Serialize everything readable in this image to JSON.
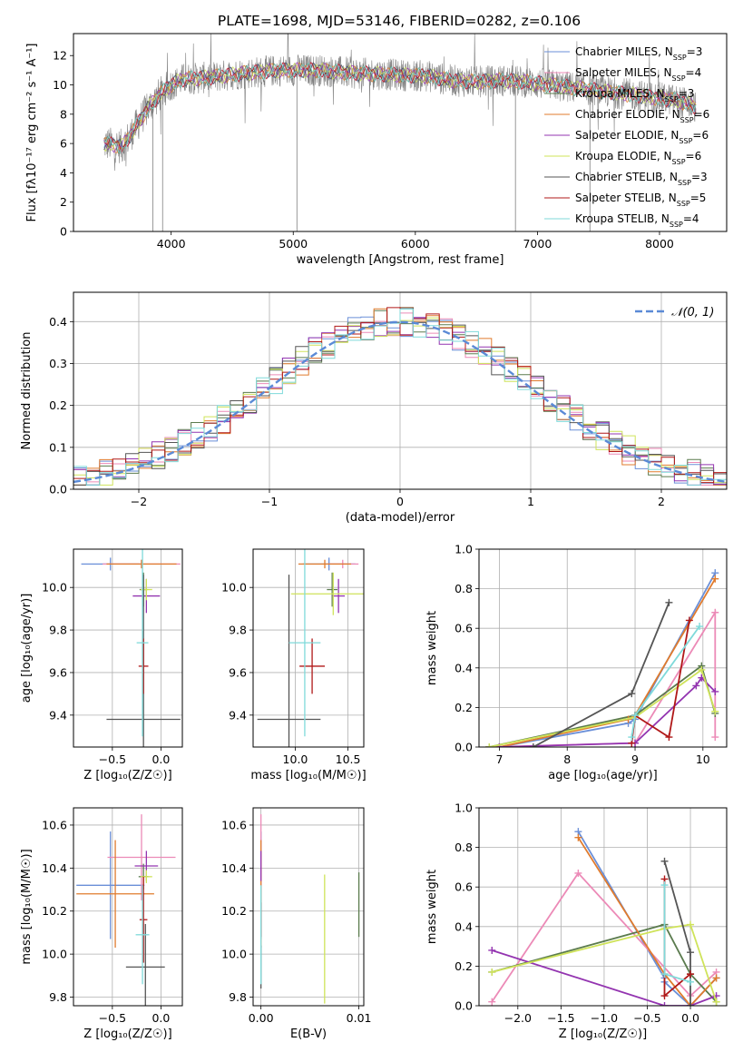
{
  "figure": {
    "title": "PLATE=1698, MJD=53146, FIBERID=0282, z=0.106"
  },
  "colors": {
    "Chabrier MILES": "#6a8fd8",
    "Salpeter MILES": "#ec8ab7",
    "Kroupa MILES": "#5b7b4e",
    "Chabrier ELODIE": "#e07b2d",
    "Salpeter ELODIE": "#9334b0",
    "Kroupa ELODIE": "#cfe35a",
    "Chabrier STELIB": "#555555",
    "Salpeter STELIB": "#b01818",
    "Kroupa STELIB": "#7fdada",
    "spectrum_data": "#808080",
    "normal_curve": "#5b8ad6"
  },
  "legend_spectrum": [
    {
      "name": "Chabrier MILES",
      "nssp": "3"
    },
    {
      "name": "Salpeter MILES",
      "nssp": "4"
    },
    {
      "name": "Kroupa MILES",
      "nssp": "3"
    },
    {
      "name": "Chabrier ELODIE",
      "nssp": "6"
    },
    {
      "name": "Salpeter ELODIE",
      "nssp": "6"
    },
    {
      "name": "Kroupa ELODIE",
      "nssp": "6"
    },
    {
      "name": "Chabrier STELIB",
      "nssp": "3"
    },
    {
      "name": "Salpeter STELIB",
      "nssp": "5"
    },
    {
      "name": "Kroupa STELIB",
      "nssp": "4"
    }
  ],
  "chart_data": [
    {
      "id": "spectrum",
      "type": "line",
      "xlabel": "wavelength [Angstrom, rest frame]",
      "ylabel": "Flux [fλ10⁻¹⁷ erg cm⁻² s⁻¹ A⁻¹]",
      "xlim": [
        3200,
        8550
      ],
      "ylim": [
        0,
        13.5
      ],
      "xticks": [
        4000,
        5000,
        6000,
        7000,
        8000
      ],
      "yticks": [
        0,
        2,
        4,
        6,
        8,
        10,
        12
      ],
      "grid": false,
      "legend_position": "top-right",
      "continuum": {
        "x": [
          3450,
          3600,
          3700,
          3800,
          3900,
          4000,
          4100,
          4300,
          4600,
          4900,
          5200,
          5500,
          5800,
          6100,
          6300,
          6500,
          6700,
          6900,
          7100,
          7300,
          7500,
          7700,
          7900,
          8100,
          8200,
          8300
        ],
        "y": [
          6.0,
          5.8,
          7.0,
          8.3,
          9.3,
          10.0,
          10.4,
          10.5,
          10.8,
          11.0,
          11.0,
          10.8,
          10.7,
          10.6,
          10.3,
          10.2,
          10.3,
          10.2,
          10.0,
          9.8,
          9.6,
          9.4,
          9.2,
          9.0,
          8.8,
          8.5
        ]
      }
    },
    {
      "id": "residuals",
      "type": "histogram",
      "xlabel": "(data-model)/error",
      "ylabel": "Normed distribution",
      "xlim": [
        -2.5,
        2.5
      ],
      "ylim": [
        0,
        0.47
      ],
      "xticks": [
        -2,
        -1,
        0,
        1,
        2
      ],
      "yticks": [
        0.0,
        0.1,
        0.2,
        0.3,
        0.4
      ],
      "grid": true,
      "legend": "𝒩(0, 1)",
      "legend_position": "top-right",
      "bin_width": 0.1,
      "bin_start": -2.5
    },
    {
      "id": "age_vs_Z",
      "type": "scatter",
      "xlabel": "Z [log₁₀(Z/Z☉)]",
      "ylabel": "age  [log₁₀(age/yr)]",
      "xlim": [
        -0.9,
        0.22
      ],
      "ylim": [
        9.25,
        10.18
      ],
      "xticks": [
        -0.5,
        0.0
      ],
      "yticks": [
        9.4,
        9.6,
        9.8,
        10.0
      ],
      "grid": true,
      "points": [
        {
          "series": "Chabrier MILES",
          "x": -0.52,
          "y": 10.11,
          "xerr": 0.3,
          "yerr": 0.03
        },
        {
          "series": "Salpeter MILES",
          "x": -0.2,
          "y": 10.11,
          "xerr": 0.4,
          "yerr": 0.02
        },
        {
          "series": "Kroupa MILES",
          "x": -0.18,
          "y": 9.99,
          "xerr": 0.04,
          "yerr": 0.08
        },
        {
          "series": "Chabrier ELODIE",
          "x": -0.2,
          "y": 10.11,
          "xerr": 0.36,
          "yerr": 0.02
        },
        {
          "series": "Salpeter ELODIE",
          "x": -0.15,
          "y": 9.96,
          "xerr": 0.14,
          "yerr": 0.08
        },
        {
          "series": "Kroupa ELODIE",
          "x": -0.15,
          "y": 9.99,
          "xerr": 0.06,
          "yerr": 0.05
        },
        {
          "series": "Chabrier STELIB",
          "x": -0.18,
          "y": 9.38,
          "xerr": 0.38,
          "yerr": 0.68
        },
        {
          "series": "Salpeter STELIB",
          "x": -0.18,
          "y": 9.63,
          "xerr": 0.05,
          "yerr": 0.13
        },
        {
          "series": "Kroupa STELIB",
          "x": -0.19,
          "y": 9.74,
          "xerr": 0.06,
          "yerr": 0.44
        }
      ]
    },
    {
      "id": "age_vs_mass",
      "type": "scatter",
      "xlabel": "mass [log₁₀(M/M☉)]",
      "ylabel": "",
      "xlim": [
        9.6,
        10.65
      ],
      "ylim": [
        9.25,
        10.18
      ],
      "xticks": [
        10.0,
        10.5
      ],
      "yticks": [
        9.4,
        9.6,
        9.8,
        10.0
      ],
      "grid": true,
      "points": [
        {
          "series": "Chabrier MILES",
          "x": 10.32,
          "y": 10.11,
          "xerr": 0.25,
          "yerr": 0.03
        },
        {
          "series": "Salpeter MILES",
          "x": 10.45,
          "y": 10.11,
          "xerr": 0.15,
          "yerr": 0.02
        },
        {
          "series": "Kroupa MILES",
          "x": 10.35,
          "y": 9.99,
          "xerr": 0.05,
          "yerr": 0.08
        },
        {
          "series": "Chabrier ELODIE",
          "x": 10.28,
          "y": 10.11,
          "xerr": 0.25,
          "yerr": 0.02
        },
        {
          "series": "Salpeter ELODIE",
          "x": 10.41,
          "y": 9.96,
          "xerr": 0.06,
          "yerr": 0.08
        },
        {
          "series": "Kroupa ELODIE",
          "x": 10.36,
          "y": 9.97,
          "xerr": 0.4,
          "yerr": 0.1
        },
        {
          "series": "Chabrier STELIB",
          "x": 9.94,
          "y": 9.38,
          "xerr": 0.3,
          "yerr": 0.68
        },
        {
          "series": "Salpeter STELIB",
          "x": 10.16,
          "y": 9.63,
          "xerr": 0.12,
          "yerr": 0.13
        },
        {
          "series": "Kroupa STELIB",
          "x": 10.09,
          "y": 9.74,
          "xerr": 0.15,
          "yerr": 0.44
        }
      ]
    },
    {
      "id": "mass_weight_vs_age",
      "type": "line",
      "xlabel": "age  [log₁₀(age/yr)]",
      "ylabel": "mass weight",
      "xlim": [
        6.7,
        10.35
      ],
      "ylim": [
        0,
        1.0
      ],
      "xticks": [
        7,
        8,
        9,
        10
      ],
      "yticks": [
        0.0,
        0.2,
        0.4,
        0.6,
        0.8,
        1.0
      ],
      "grid": true,
      "series": [
        {
          "name": "Chabrier MILES",
          "x": [
            7.0,
            8.9,
            9.0,
            10.18
          ],
          "y": [
            0.0,
            0.12,
            0.14,
            0.88
          ]
        },
        {
          "name": "Salpeter MILES",
          "x": [
            6.85,
            9.0,
            10.18,
            10.18
          ],
          "y": [
            0.0,
            0.02,
            0.68,
            0.05
          ]
        },
        {
          "name": "Kroupa MILES",
          "x": [
            6.85,
            9.0,
            9.98,
            10.18
          ],
          "y": [
            0.0,
            0.16,
            0.41,
            0.17
          ]
        },
        {
          "name": "Chabrier ELODIE",
          "x": [
            7.0,
            8.9,
            9.0,
            10.18
          ],
          "y": [
            0.0,
            0.14,
            0.16,
            0.85
          ]
        },
        {
          "name": "Salpeter ELODIE",
          "x": [
            7.0,
            9.0,
            9.9,
            9.98,
            10.18
          ],
          "y": [
            0.0,
            0.02,
            0.31,
            0.35,
            0.28
          ]
        },
        {
          "name": "Kroupa ELODIE",
          "x": [
            6.85,
            9.0,
            9.98,
            10.18
          ],
          "y": [
            0.0,
            0.15,
            0.39,
            0.18
          ]
        },
        {
          "name": "Chabrier STELIB",
          "x": [
            7.5,
            8.95,
            9.5
          ],
          "y": [
            0.0,
            0.27,
            0.73
          ]
        },
        {
          "name": "Salpeter STELIB",
          "x": [
            8.95,
            9.0,
            9.5,
            9.8
          ],
          "y": [
            0.02,
            0.16,
            0.05,
            0.64
          ]
        },
        {
          "name": "Kroupa STELIB",
          "x": [
            8.95,
            9.0,
            9.95
          ],
          "y": [
            0.05,
            0.16,
            0.61
          ]
        }
      ]
    },
    {
      "id": "mass_vs_Z",
      "type": "scatter",
      "xlabel": "Z [log₁₀(Z/Z☉)]",
      "ylabel": "mass [log₁₀(M/M☉)]",
      "xlim": [
        -0.9,
        0.22
      ],
      "ylim": [
        9.76,
        10.68
      ],
      "xticks": [
        -0.5,
        0.0
      ],
      "yticks": [
        9.8,
        10.0,
        10.2,
        10.4,
        10.6
      ],
      "grid": true,
      "points": [
        {
          "series": "Chabrier MILES",
          "x": -0.52,
          "y": 10.32,
          "xerr": 0.35,
          "yerr": 0.25
        },
        {
          "series": "Salpeter MILES",
          "x": -0.2,
          "y": 10.45,
          "xerr": 0.35,
          "yerr": 0.2
        },
        {
          "series": "Kroupa MILES",
          "x": -0.18,
          "y": 10.36,
          "xerr": 0.05,
          "yerr": 0.06
        },
        {
          "series": "Chabrier ELODIE",
          "x": -0.47,
          "y": 10.28,
          "xerr": 0.4,
          "yerr": 0.25
        },
        {
          "series": "Salpeter ELODIE",
          "x": -0.15,
          "y": 10.41,
          "xerr": 0.12,
          "yerr": 0.07
        },
        {
          "series": "Kroupa ELODIE",
          "x": -0.15,
          "y": 10.36,
          "xerr": 0.06,
          "yerr": 0.03
        },
        {
          "series": "Chabrier STELIB",
          "x": -0.16,
          "y": 9.94,
          "xerr": 0.2,
          "yerr": 0.2
        },
        {
          "series": "Salpeter STELIB",
          "x": -0.18,
          "y": 10.16,
          "xerr": 0.04,
          "yerr": 0.2
        },
        {
          "series": "Kroupa STELIB",
          "x": -0.19,
          "y": 10.09,
          "xerr": 0.07,
          "yerr": 0.23
        }
      ]
    },
    {
      "id": "mass_vs_ebv",
      "type": "scatter",
      "xlabel": "E(B-V)",
      "ylabel": "",
      "xlim": [
        -0.0008,
        0.0105
      ],
      "ylim": [
        9.76,
        10.68
      ],
      "xticks": [
        0.0,
        0.01
      ],
      "xticklabels": [
        "0.00",
        "0.01"
      ],
      "yticks": [
        9.8,
        10.0,
        10.2,
        10.4,
        10.6
      ],
      "grid": true,
      "points": [
        {
          "series": "Chabrier MILES",
          "x": 0.0,
          "y": 10.32,
          "yerr": 0.25
        },
        {
          "series": "Salpeter MILES",
          "x": 0.0,
          "y": 10.45,
          "yerr": 0.2
        },
        {
          "series": "Kroupa MILES",
          "x": 0.01,
          "y": 10.23,
          "yerr": 0.15
        },
        {
          "series": "Chabrier ELODIE",
          "x": 0.0,
          "y": 10.28,
          "yerr": 0.25
        },
        {
          "series": "Salpeter ELODIE",
          "x": 0.0,
          "y": 10.41,
          "yerr": 0.07
        },
        {
          "series": "Kroupa ELODIE",
          "x": 0.0065,
          "y": 10.07,
          "yerr": 0.3
        },
        {
          "series": "Chabrier STELIB",
          "x": 0.0,
          "y": 9.94,
          "yerr": 0.1
        },
        {
          "series": "Salpeter STELIB",
          "x": 0.0,
          "y": 10.16,
          "yerr": 0.08
        },
        {
          "series": "Kroupa STELIB",
          "x": 0.0,
          "y": 10.09,
          "yerr": 0.23
        }
      ]
    },
    {
      "id": "mass_weight_vs_Z",
      "type": "line",
      "xlabel": "Z [log₁₀(Z/Z☉)]",
      "ylabel": "mass weight",
      "xlim": [
        -2.45,
        0.42
      ],
      "ylim": [
        0,
        1.0
      ],
      "xticks": [
        -2.0,
        -1.5,
        -1.0,
        -0.5,
        0.0
      ],
      "yticks": [
        0.0,
        0.2,
        0.4,
        0.6,
        0.8,
        1.0
      ],
      "grid": true,
      "series": [
        {
          "name": "Chabrier MILES",
          "x": [
            -1.3,
            -0.3,
            -0.3,
            0.0,
            0.3
          ],
          "y": [
            0.88,
            0.14,
            0.12,
            0.0,
            0.14
          ]
        },
        {
          "name": "Salpeter MILES",
          "x": [
            -2.3,
            -1.3,
            0.0,
            0.3
          ],
          "y": [
            0.02,
            0.67,
            0.05,
            0.17
          ]
        },
        {
          "name": "Kroupa MILES",
          "x": [
            -2.3,
            -0.3,
            0.0,
            0.3
          ],
          "y": [
            0.17,
            0.41,
            0.16,
            0.02
          ]
        },
        {
          "name": "Chabrier ELODIE",
          "x": [
            -1.3,
            -0.3,
            0.0,
            0.3
          ],
          "y": [
            0.85,
            0.16,
            0.0,
            0.14
          ]
        },
        {
          "name": "Salpeter ELODIE",
          "x": [
            -2.3,
            -0.3,
            0.0,
            0.3
          ],
          "y": [
            0.28,
            0.0,
            0.0,
            0.05
          ]
        },
        {
          "name": "Kroupa ELODIE",
          "x": [
            -2.3,
            -0.3,
            0.0,
            0.3
          ],
          "y": [
            0.17,
            0.39,
            0.41,
            0.02
          ]
        },
        {
          "name": "Chabrier STELIB",
          "x": [
            -0.3,
            0.0,
            0.0
          ],
          "y": [
            0.73,
            0.27,
            0.0
          ]
        },
        {
          "name": "Salpeter STELIB",
          "x": [
            -0.3,
            -0.3,
            0.0
          ],
          "y": [
            0.64,
            0.05,
            0.16
          ]
        },
        {
          "name": "Kroupa STELIB",
          "x": [
            -0.3,
            -0.3,
            0.0
          ],
          "y": [
            0.61,
            0.16,
            0.12
          ]
        }
      ]
    }
  ]
}
